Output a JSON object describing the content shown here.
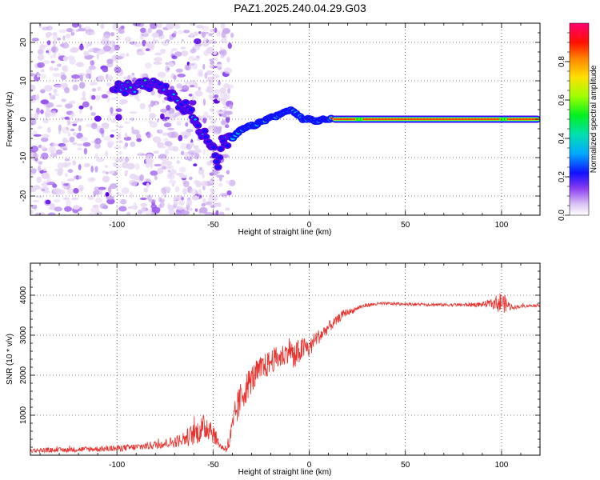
{
  "title": "PAZ1.2025.240.04.29.G03",
  "colors": {
    "snr_line": "#e8322e",
    "grid_dot": "#000000",
    "colormap": [
      "#e8d8f4",
      "#c9a8f0",
      "#9a55ee",
      "#5a00e8",
      "#1010ff",
      "#00c8ff",
      "#00e070",
      "#30ff00",
      "#e8ff00",
      "#ffa000",
      "#ff2000",
      "#ff0080"
    ]
  },
  "chart_data": [
    {
      "type": "heatmap",
      "title": "PAZ1.2025.240.04.29.G03",
      "xlabel": "Height of straight line (km)",
      "ylabel": "Frequency (Hz)",
      "xlim": [
        -145,
        120
      ],
      "ylim": [
        -25,
        25
      ],
      "xticks": [
        -100,
        -50,
        0,
        50,
        100
      ],
      "yticks": [
        -20,
        -10,
        0,
        10,
        20
      ],
      "colorbar": {
        "label": "Normalized spectral amplitude",
        "range": [
          0,
          1
        ],
        "ticks": [
          "0.0",
          "0.2",
          "0.4",
          "0.6",
          "0.8"
        ],
        "tick_values": [
          0.0,
          0.2,
          0.4,
          0.6,
          0.8
        ]
      },
      "ridge": {
        "x": [
          -102,
          -95,
          -88,
          -82,
          -76,
          -72,
          -68,
          -63,
          -60,
          -58,
          -55,
          -52,
          -49,
          -47,
          -45,
          -43,
          -40,
          -36,
          -32,
          -28,
          -24,
          -20,
          -16,
          -12,
          -10,
          -8,
          -6,
          -3,
          0,
          4,
          8,
          12,
          120
        ],
        "y": [
          9,
          8,
          8.5,
          9,
          8,
          6,
          4,
          3,
          0,
          -2,
          -3.5,
          -5,
          -9,
          -12,
          -5,
          -6,
          -5,
          -3,
          -2,
          -1.5,
          -0.5,
          0.5,
          1,
          2,
          2.5,
          2,
          1,
          0,
          0,
          -0.5,
          0,
          0,
          0
        ]
      },
      "noise_region_x": [
        -145,
        -40
      ],
      "noise_region_y": [
        -25,
        25
      ]
    },
    {
      "type": "line",
      "xlabel": "Height of straight line (km)",
      "ylabel": "SNR (10 * v/v)",
      "xlim": [
        -145,
        120
      ],
      "ylim": [
        0,
        4800
      ],
      "xticks": [
        -100,
        -50,
        0,
        50,
        100
      ],
      "yticks": [
        1000,
        2000,
        3000,
        4000
      ],
      "series": [
        {
          "name": "SNR",
          "x": [
            -145,
            -130,
            -115,
            -100,
            -90,
            -80,
            -70,
            -65,
            -60,
            -57,
            -54,
            -52,
            -50,
            -48,
            -46,
            -44,
            -42,
            -40,
            -38,
            -35,
            -32,
            -30,
            -28,
            -25,
            -22,
            -20,
            -18,
            -15,
            -12,
            -10,
            -8,
            -5,
            -2,
            0,
            3,
            6,
            10,
            14,
            18,
            22,
            26,
            30,
            35,
            40,
            50,
            60,
            70,
            80,
            90,
            95,
            100,
            103,
            106,
            110,
            115,
            120
          ],
          "y": [
            120,
            130,
            150,
            170,
            200,
            260,
            330,
            420,
            520,
            620,
            700,
            750,
            560,
            380,
            220,
            160,
            260,
            620,
            1100,
            1500,
            1750,
            1900,
            2000,
            2150,
            2250,
            2350,
            2400,
            2450,
            2550,
            2700,
            2400,
            2600,
            2700,
            2650,
            2900,
            3000,
            3200,
            3350,
            3550,
            3600,
            3700,
            3750,
            3780,
            3790,
            3780,
            3770,
            3760,
            3760,
            3770,
            3790,
            3820,
            3750,
            3700,
            3720,
            3740,
            3750
          ]
        }
      ],
      "noise_amplitude": [
        60,
        60,
        70,
        80,
        90,
        110,
        140,
        200,
        280,
        320,
        360,
        380,
        260,
        160,
        80,
        70,
        220,
        380,
        420,
        420,
        380,
        360,
        350,
        330,
        320,
        310,
        300,
        300,
        290,
        300,
        420,
        320,
        280,
        240,
        200,
        180,
        150,
        120,
        100,
        70,
        60,
        50,
        45,
        40,
        40,
        40,
        40,
        45,
        60,
        120,
        300,
        150,
        60,
        40,
        35,
        35
      ]
    }
  ]
}
